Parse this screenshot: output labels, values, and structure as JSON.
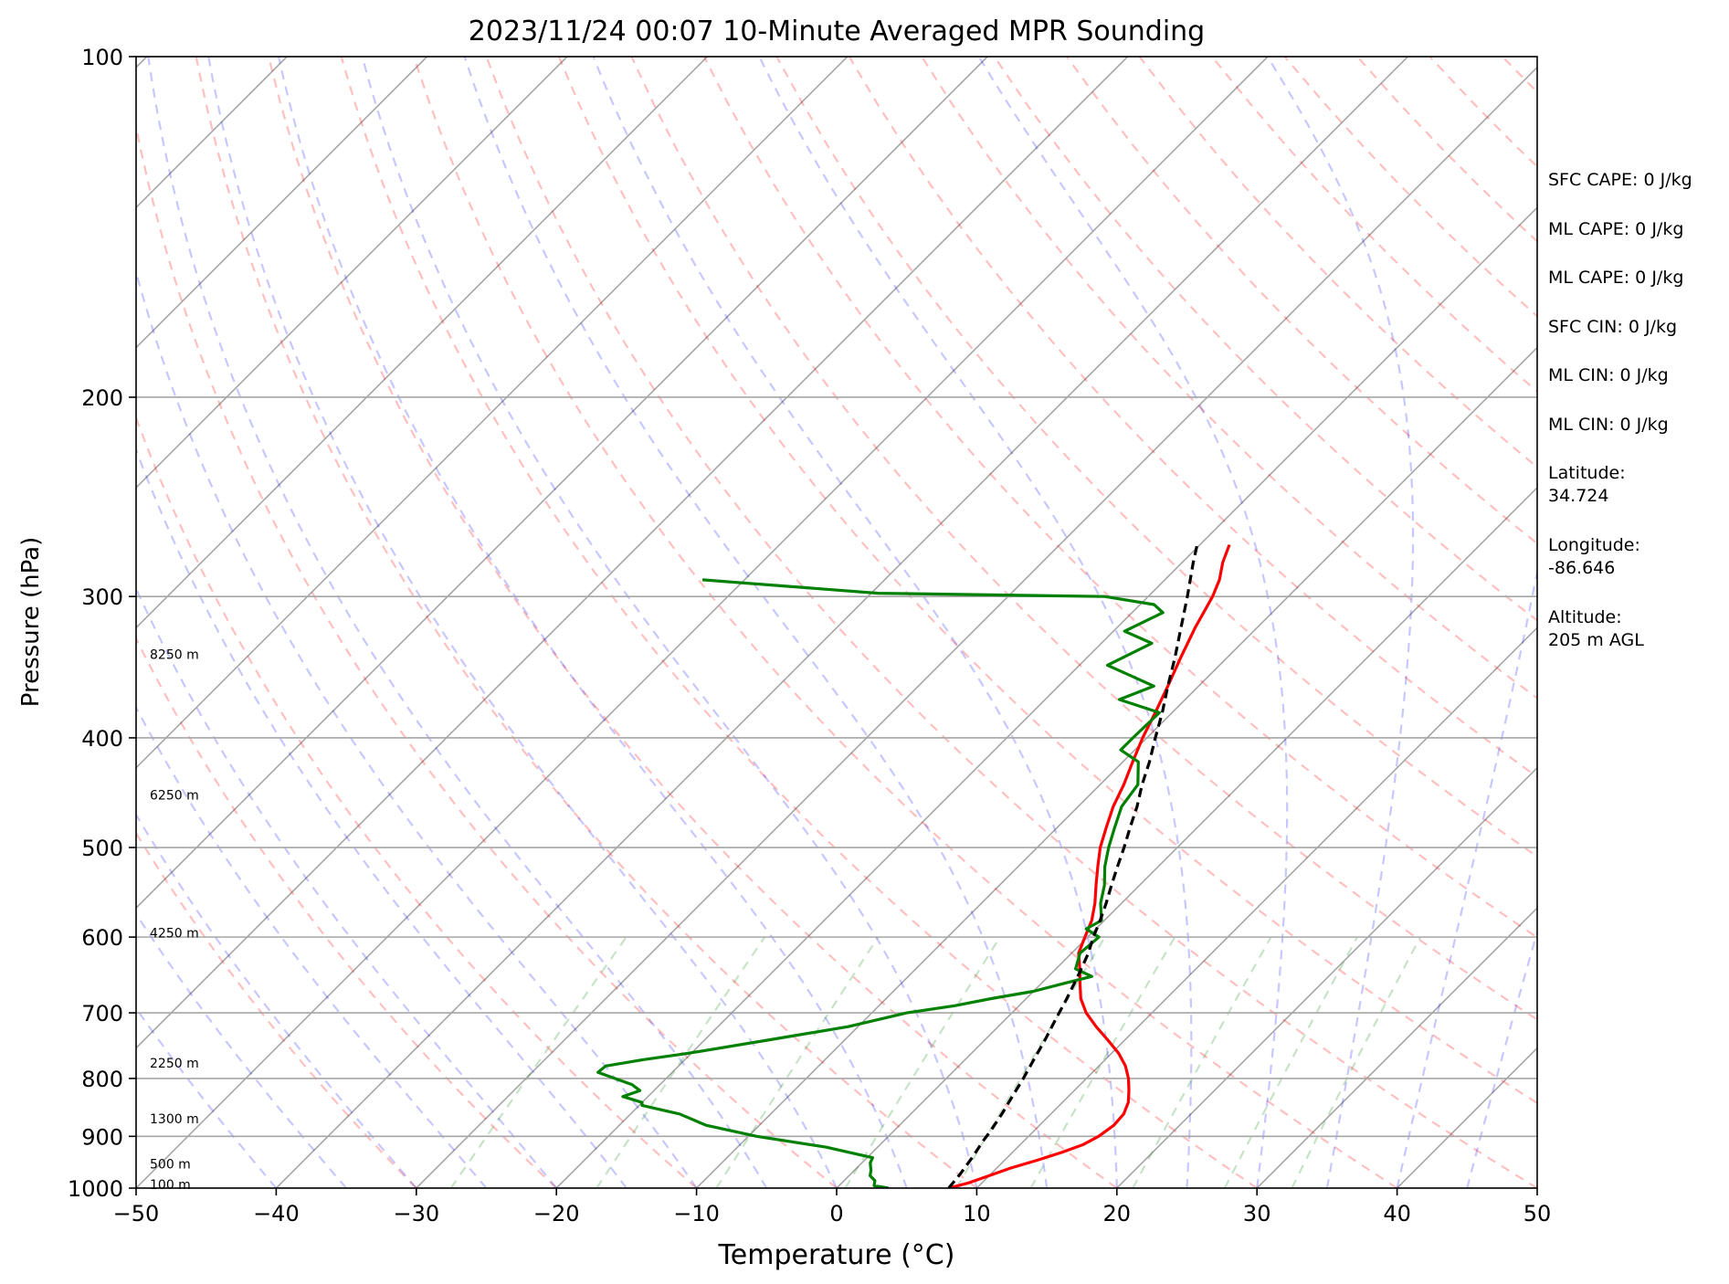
{
  "chart_data": {
    "type": "line",
    "title": "2023/11/24 00:07 10-Minute Averaged MPR Sounding",
    "xlabel": "Temperature (°C)",
    "ylabel": "Pressure (hPa)",
    "xlim": [
      -50,
      50
    ],
    "ylim": [
      1000,
      100
    ],
    "y_scale": "log",
    "grid": true,
    "x_ticks": [
      -50,
      -40,
      -30,
      -20,
      -10,
      0,
      10,
      20,
      30,
      40,
      50
    ],
    "y_ticks": [
      100,
      200,
      300,
      400,
      500,
      600,
      700,
      800,
      900,
      1000
    ],
    "height_labels": [
      {
        "text": "100 m",
        "p": 994
      },
      {
        "text": "500 m",
        "p": 954
      },
      {
        "text": "1300 m",
        "p": 870
      },
      {
        "text": "2250 m",
        "p": 777
      },
      {
        "text": "4250 m",
        "p": 596
      },
      {
        "text": "6250 m",
        "p": 450
      },
      {
        "text": "8250 m",
        "p": 338
      }
    ],
    "series": [
      {
        "role": "temperature",
        "color": "#ff0000",
        "p": [
          1000,
          990,
          975,
          960,
          945,
          930,
          915,
          900,
          880,
          860,
          840,
          820,
          800,
          780,
          760,
          740,
          720,
          700,
          680,
          660,
          640,
          620,
          600,
          580,
          560,
          540,
          520,
          500,
          480,
          460,
          440,
          420,
          400,
          380,
          360,
          340,
          320,
          300,
          290,
          280,
          270
        ],
        "t": [
          8.0,
          9.0,
          10.0,
          11.0,
          12.3,
          13.5,
          14.5,
          15.0,
          15.3,
          15.2,
          14.7,
          13.9,
          13.0,
          11.9,
          10.5,
          8.8,
          7.0,
          5.3,
          3.9,
          2.8,
          1.7,
          0.5,
          -0.2,
          -0.9,
          -1.9,
          -3.1,
          -4.3,
          -5.5,
          -6.5,
          -7.5,
          -8.3,
          -9.3,
          -10.3,
          -11.2,
          -12.2,
          -13.3,
          -14.4,
          -15.4,
          -16.1,
          -17.1,
          -17.9
        ]
      },
      {
        "role": "dewpoint",
        "color": "#008000",
        "p": [
          1000,
          995,
          985,
          975,
          965,
          950,
          940,
          920,
          900,
          880,
          860,
          845,
          840,
          830,
          820,
          810,
          790,
          780,
          770,
          760,
          740,
          720,
          700,
          690,
          680,
          670,
          660,
          650,
          640,
          620,
          600,
          590,
          580,
          560,
          540,
          520,
          500,
          480,
          460,
          440,
          420,
          410,
          400,
          380,
          370,
          360,
          345,
          330,
          322,
          310,
          305,
          300,
          298,
          290
        ],
        "t": [
          3.7,
          2.5,
          2.2,
          1.5,
          1.2,
          0.6,
          0.4,
          -3.7,
          -9.4,
          -13.8,
          -16.5,
          -19.8,
          -20.0,
          -21.8,
          -21.0,
          -22.0,
          -25.3,
          -25.2,
          -23.0,
          -20.2,
          -15.5,
          -10.7,
          -7.5,
          -4.6,
          -2.5,
          0.0,
          1.5,
          3.1,
          1.4,
          0.6,
          0.8,
          -0.7,
          -0.2,
          -1.5,
          -2.5,
          -3.8,
          -4.9,
          -5.9,
          -6.9,
          -7.3,
          -8.9,
          -11.0,
          -11.0,
          -10.9,
          -14.7,
          -13.2,
          -18.0,
          -16.4,
          -19.2,
          -17.8,
          -19.0,
          -23.1,
          -39.5,
          -53.0
        ]
      },
      {
        "role": "parcel",
        "color": "#000000",
        "p": [
          1000,
          970,
          940,
          910,
          890,
          860,
          830,
          800,
          770,
          740,
          710,
          680,
          650,
          620,
          600,
          580,
          560,
          540,
          520,
          500,
          480,
          460,
          440,
          420,
          400,
          380,
          360,
          340,
          320,
          300,
          280,
          270
        ],
        "t": [
          8.0,
          7.8,
          7.5,
          7.1,
          6.9,
          6.5,
          6.0,
          5.5,
          4.9,
          4.3,
          3.6,
          2.9,
          2.1,
          1.2,
          0.4,
          -0.3,
          -1.1,
          -2.0,
          -2.9,
          -3.8,
          -4.8,
          -5.8,
          -7.0,
          -8.1,
          -9.4,
          -10.7,
          -12.2,
          -13.7,
          -15.4,
          -17.2,
          -19.2,
          -20.2
        ]
      }
    ]
  },
  "info": {
    "sfc_cape": "SFC CAPE: 0 J/kg",
    "ml_cape_1": "ML CAPE: 0 J/kg",
    "ml_cape_2": "ML CAPE: 0 J/kg",
    "sfc_cin": "SFC CIN: 0 J/kg",
    "ml_cin_1": "ML CIN: 0 J/kg",
    "ml_cin_2": "ML CIN: 0 J/kg",
    "latitude": "Latitude:\n34.724",
    "longitude": "Longitude:\n-86.646",
    "altitude": "Altitude:\n205 m AGL"
  }
}
